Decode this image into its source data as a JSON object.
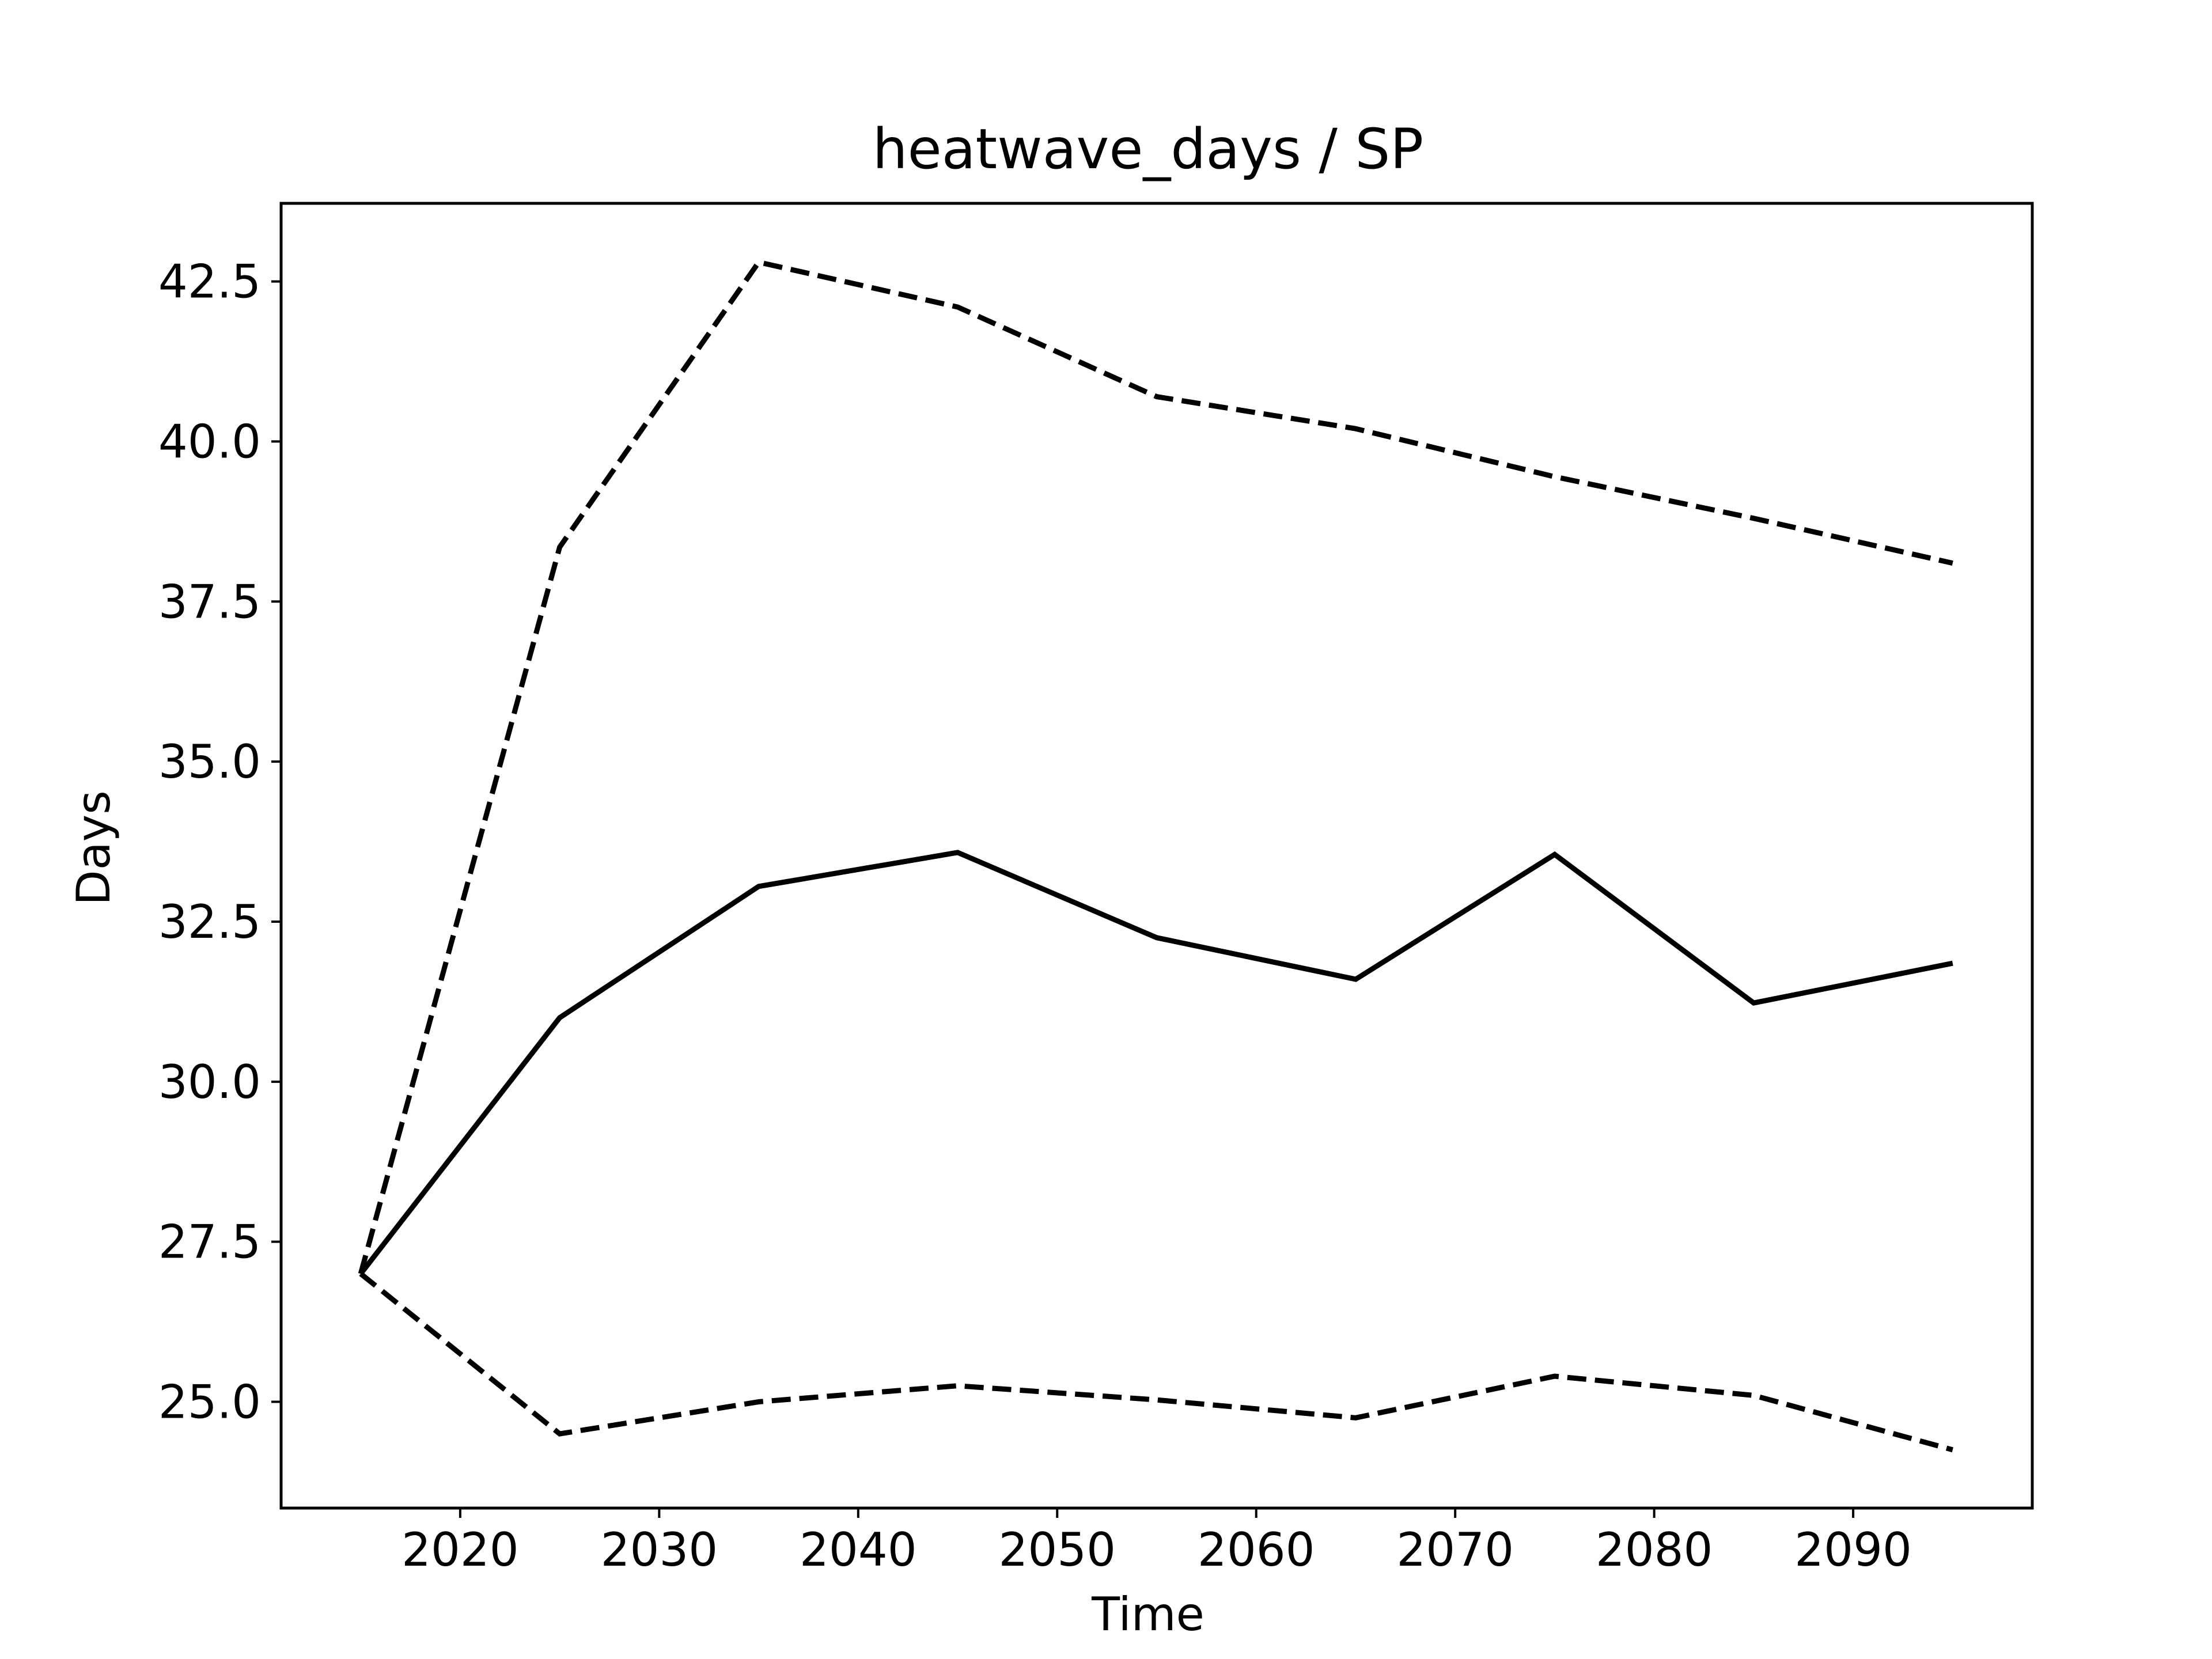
{
  "chart_data": {
    "type": "line",
    "title": "heatwave_days / SP",
    "xlabel": "Time",
    "ylabel": "Days",
    "x": [
      2015,
      2025,
      2035,
      2045,
      2055,
      2065,
      2075,
      2085,
      2095
    ],
    "series": [
      {
        "style": "solid",
        "color": "#000000",
        "values": [
          27.0,
          31.0,
          33.05,
          33.58,
          32.25,
          31.6,
          33.55,
          31.23,
          31.85
        ]
      },
      {
        "style": "dashed",
        "color": "#000000",
        "values": [
          27.0,
          38.35,
          42.8,
          42.1,
          40.7,
          40.2,
          39.45,
          38.8,
          38.1
        ]
      },
      {
        "style": "dashed",
        "color": "#000000",
        "values": [
          27.0,
          24.5,
          25.0,
          25.25,
          25.03,
          24.75,
          25.4,
          25.1,
          24.25
        ]
      }
    ],
    "xlim": [
      2011,
      2099
    ],
    "ylim": [
      23.34,
      43.72
    ],
    "xticks": [
      2020,
      2030,
      2040,
      2050,
      2060,
      2070,
      2080,
      2090
    ],
    "yticks": [
      25.0,
      27.5,
      30.0,
      32.5,
      35.0,
      37.5,
      40.0,
      42.5
    ],
    "ytick_labels": [
      "25.0",
      "27.5",
      "30.0",
      "32.5",
      "35.0",
      "37.5",
      "40.0",
      "42.5"
    ],
    "grid": false,
    "legend": "none"
  }
}
